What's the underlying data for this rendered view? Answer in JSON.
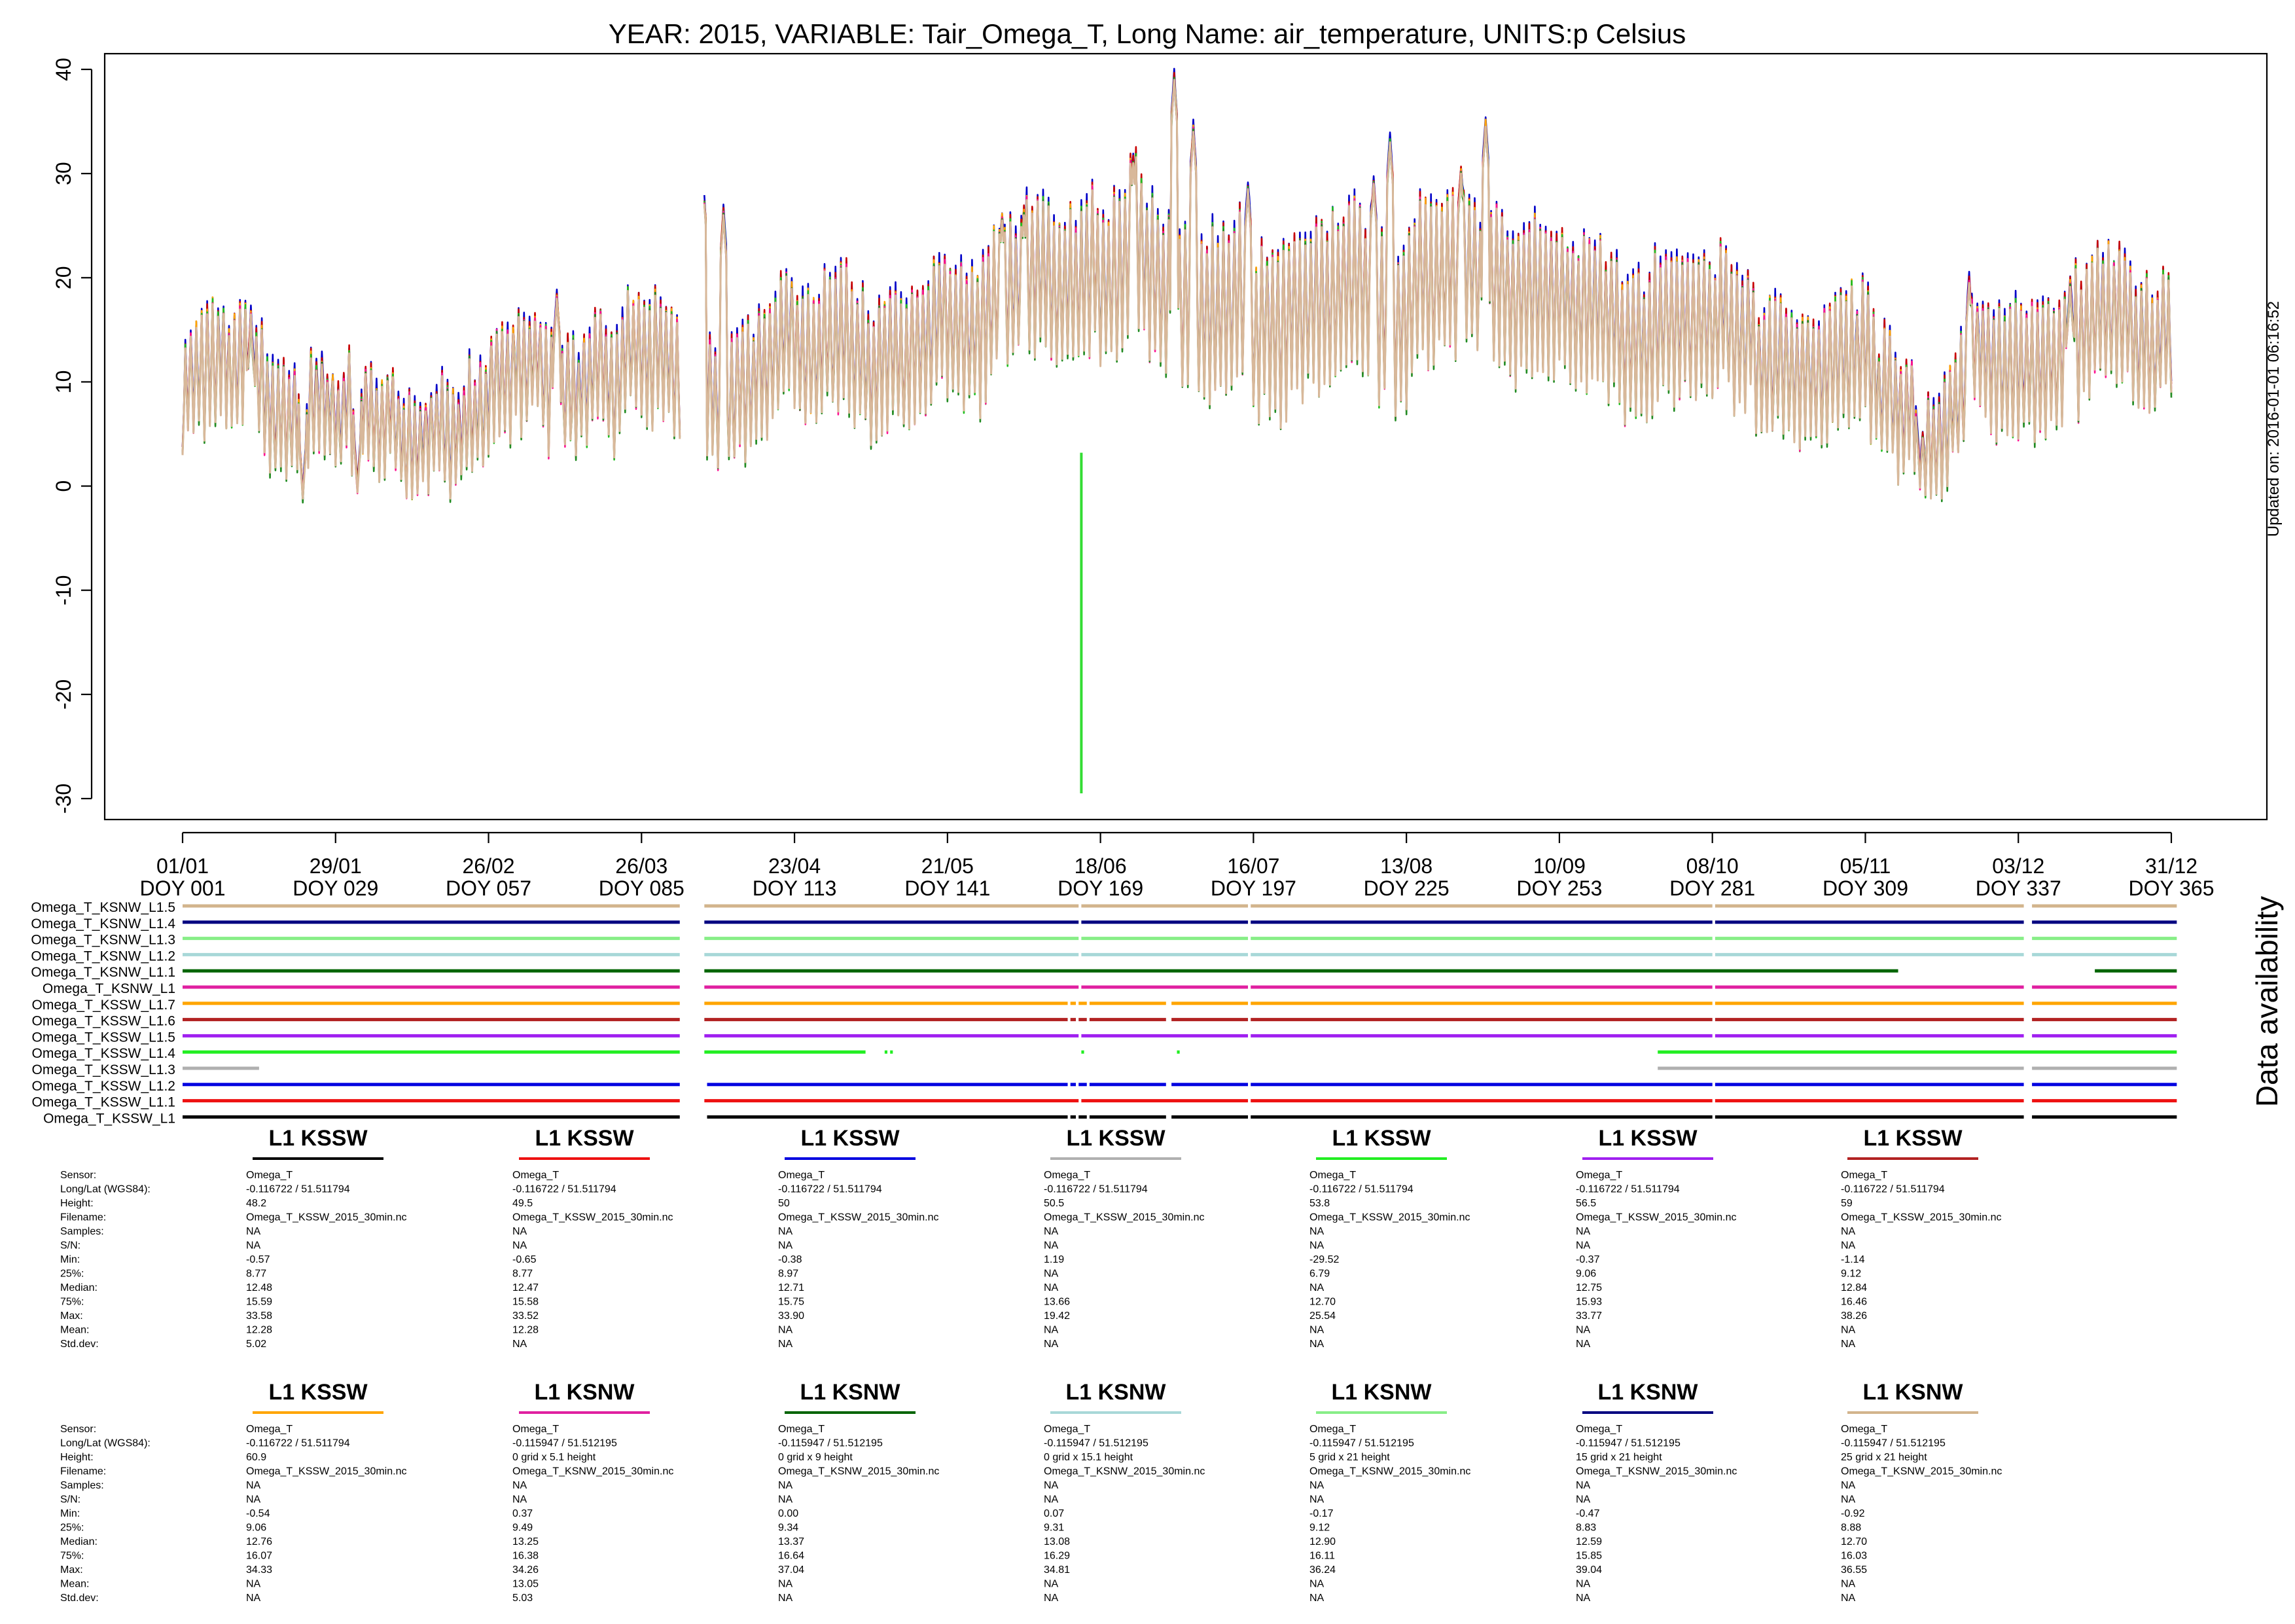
{
  "chart_data": {
    "type": "line",
    "title": "YEAR: 2015, VARIABLE: Tair_Omega_T, Long Name: air_temperature, UNITS:p Celsius",
    "updated": "Updated on: 2016-01-01 06:16:52",
    "ylim": [
      -32,
      42
    ],
    "yticks": [
      -30,
      -20,
      -10,
      0,
      10,
      20,
      30,
      40
    ],
    "ytick_labels": [
      "-30",
      "-20",
      "-10",
      "0",
      "10",
      "20",
      "30",
      "40"
    ],
    "xlim": [
      1,
      366
    ],
    "xticks": [
      {
        "doy": 1,
        "date": "01/01",
        "label": "DOY 001"
      },
      {
        "doy": 29,
        "date": "29/01",
        "label": "DOY 029"
      },
      {
        "doy": 57,
        "date": "26/02",
        "label": "DOY 057"
      },
      {
        "doy": 85,
        "date": "26/03",
        "label": "DOY 085"
      },
      {
        "doy": 113,
        "date": "23/04",
        "label": "DOY 113"
      },
      {
        "doy": 141,
        "date": "21/05",
        "label": "DOY 141"
      },
      {
        "doy": 169,
        "date": "18/06",
        "label": "DOY 169"
      },
      {
        "doy": 197,
        "date": "16/07",
        "label": "DOY 197"
      },
      {
        "doy": 225,
        "date": "13/08",
        "label": "DOY 225"
      },
      {
        "doy": 253,
        "date": "10/09",
        "label": "DOY 253"
      },
      {
        "doy": 281,
        "date": "08/10",
        "label": "DOY 281"
      },
      {
        "doy": 309,
        "date": "05/11",
        "label": "DOY 309"
      },
      {
        "doy": 337,
        "date": "03/12",
        "label": "DOY 337"
      },
      {
        "doy": 365,
        "date": "31/12",
        "label": "DOY 365"
      }
    ],
    "series_colors": [
      "#0000c8",
      "#c80000",
      "#ffa500",
      "#20c020",
      "#ff1493",
      "#228b22",
      "#d8b89a"
    ],
    "baseline_profile": [
      [
        1,
        7.5
      ],
      [
        8,
        9.5
      ],
      [
        15,
        9
      ],
      [
        22,
        7
      ],
      [
        29,
        5.5
      ],
      [
        36,
        4.5
      ],
      [
        43,
        5
      ],
      [
        50,
        5.5
      ],
      [
        57,
        6.5
      ],
      [
        64,
        7.5
      ],
      [
        71,
        8.5
      ],
      [
        78,
        9
      ],
      [
        85,
        9
      ],
      [
        92,
        9.5
      ],
      [
        99,
        12
      ],
      [
        106,
        12.5
      ],
      [
        113,
        12.5
      ],
      [
        120,
        13
      ],
      [
        127,
        13
      ],
      [
        134,
        13.5
      ],
      [
        141,
        14
      ],
      [
        148,
        14
      ],
      [
        155,
        14.5
      ],
      [
        162,
        15.5
      ],
      [
        169,
        17
      ],
      [
        176,
        19
      ],
      [
        183,
        18.5
      ],
      [
        190,
        19
      ],
      [
        197,
        19.5
      ],
      [
        204,
        20
      ],
      [
        211,
        19.5
      ],
      [
        218,
        19
      ],
      [
        225,
        19
      ],
      [
        232,
        18
      ],
      [
        239,
        18
      ],
      [
        246,
        17
      ],
      [
        253,
        16
      ],
      [
        260,
        15.5
      ],
      [
        267,
        15
      ],
      [
        274,
        14.5
      ],
      [
        281,
        14
      ],
      [
        288,
        13
      ],
      [
        295,
        12.5
      ],
      [
        302,
        12
      ],
      [
        309,
        11.5
      ],
      [
        316,
        10
      ],
      [
        323,
        7.5
      ],
      [
        330,
        10
      ],
      [
        337,
        12
      ],
      [
        344,
        12.5
      ],
      [
        351,
        13
      ],
      [
        358,
        12.5
      ],
      [
        365,
        10
      ]
    ],
    "peaks": [
      {
        "doy": 13.5,
        "value": 15.5
      },
      {
        "doy": 69.5,
        "value": 18
      },
      {
        "doy": 96.2,
        "value": 29.5
      },
      {
        "doy": 100,
        "value": 26
      },
      {
        "doy": 151,
        "value": 25.5
      },
      {
        "doy": 155,
        "value": 26
      },
      {
        "doy": 175,
        "value": 31
      },
      {
        "doy": 182.5,
        "value": 39
      },
      {
        "doy": 186,
        "value": 34
      },
      {
        "doy": 196,
        "value": 28.5
      },
      {
        "doy": 219,
        "value": 29
      },
      {
        "doy": 222,
        "value": 33
      },
      {
        "doy": 235,
        "value": 30
      },
      {
        "doy": 239.5,
        "value": 34.5
      },
      {
        "doy": 328,
        "value": 19.5
      },
      {
        "doy": 346.5,
        "value": 19
      }
    ],
    "troughs": [
      {
        "doy": 23,
        "value": -1.2
      },
      {
        "doy": 33,
        "value": -0.6
      },
      {
        "doy": 319,
        "value": 0.6
      }
    ],
    "outlier_spike": {
      "doy": 165.5,
      "from": 3.2,
      "to": -29.5,
      "color": "#33dd33"
    },
    "gaps": [
      [
        92,
        96.5
      ]
    ]
  },
  "availability": {
    "label": "Data availability",
    "rows": [
      {
        "name": "Omega_T_KSNW_L1.5",
        "color": "#d2b48c",
        "segments": [
          [
            1,
            92
          ],
          [
            96.5,
            165
          ],
          [
            165.5,
            196
          ],
          [
            196.5,
            281
          ],
          [
            281.5,
            338
          ],
          [
            339.5,
            366
          ]
        ]
      },
      {
        "name": "Omega_T_KSNW_L1.4",
        "color": "#000080",
        "segments": [
          [
            1,
            92
          ],
          [
            96.5,
            165
          ],
          [
            165.5,
            196
          ],
          [
            196.5,
            281
          ],
          [
            281.5,
            338
          ],
          [
            339.5,
            366
          ]
        ]
      },
      {
        "name": "Omega_T_KSNW_L1.3",
        "color": "#88ee88",
        "segments": [
          [
            1,
            92
          ],
          [
            96.5,
            165
          ],
          [
            165.5,
            196
          ],
          [
            196.5,
            281
          ],
          [
            281.5,
            338
          ],
          [
            339.5,
            366
          ]
        ]
      },
      {
        "name": "Omega_T_KSNW_L1.2",
        "color": "#a8d8d8",
        "segments": [
          [
            1,
            92
          ],
          [
            96.5,
            165
          ],
          [
            165.5,
            196
          ],
          [
            196.5,
            281
          ],
          [
            281.5,
            338
          ],
          [
            339.5,
            366
          ]
        ]
      },
      {
        "name": "Omega_T_KSNW_L1.1",
        "color": "#006400",
        "segments": [
          [
            1,
            92
          ],
          [
            96.5,
            315
          ],
          [
            351,
            366
          ]
        ]
      },
      {
        "name": "Omega_T_KSNW_L1",
        "color": "#e020a0",
        "segments": [
          [
            1,
            92
          ],
          [
            96.5,
            165
          ],
          [
            165.5,
            196
          ],
          [
            196.5,
            281
          ],
          [
            281.5,
            338
          ],
          [
            339.5,
            366
          ]
        ]
      },
      {
        "name": "Omega_T_KSSW_L1.7",
        "color": "#ffa500",
        "segments": [
          [
            1,
            92
          ],
          [
            96.5,
            163
          ],
          [
            163.5,
            164.5
          ],
          [
            165,
            166.5
          ],
          [
            167,
            181
          ],
          [
            182,
            196
          ],
          [
            196.5,
            281
          ],
          [
            281.5,
            338
          ],
          [
            339.5,
            366
          ]
        ]
      },
      {
        "name": "Omega_T_KSSW_L1.6",
        "color": "#b22222",
        "segments": [
          [
            1,
            92
          ],
          [
            96.5,
            163
          ],
          [
            163.5,
            164.5
          ],
          [
            165,
            166.5
          ],
          [
            167,
            181
          ],
          [
            182,
            196
          ],
          [
            196.5,
            281
          ],
          [
            281.5,
            338
          ],
          [
            339.5,
            366
          ]
        ]
      },
      {
        "name": "Omega_T_KSSW_L1.5",
        "color": "#a020f0",
        "segments": [
          [
            1,
            92
          ],
          [
            96.5,
            165
          ],
          [
            165.5,
            196
          ],
          [
            196.5,
            281
          ],
          [
            281.5,
            338
          ],
          [
            339.5,
            366
          ]
        ]
      },
      {
        "name": "Omega_T_KSSW_L1.4",
        "color": "#22ee22",
        "segments": [
          [
            1,
            92
          ],
          [
            96.5,
            126
          ],
          [
            129.5,
            130
          ],
          [
            130.5,
            131
          ],
          [
            165.5,
            166
          ],
          [
            183,
            183.5
          ],
          [
            271,
            366
          ]
        ]
      },
      {
        "name": "Omega_T_KSSW_L1.3",
        "color": "#b0b0b0",
        "segments": [
          [
            1,
            15
          ],
          [
            271,
            338
          ],
          [
            339.5,
            366
          ]
        ]
      },
      {
        "name": "Omega_T_KSSW_L1.2",
        "color": "#0000e0",
        "segments": [
          [
            1,
            92
          ],
          [
            97,
            163
          ],
          [
            163.5,
            164.5
          ],
          [
            165,
            166.5
          ],
          [
            167,
            181
          ],
          [
            182,
            196
          ],
          [
            196.5,
            281
          ],
          [
            281.5,
            338
          ],
          [
            339.5,
            366
          ]
        ]
      },
      {
        "name": "Omega_T_KSSW_L1.1",
        "color": "#ee1111",
        "segments": [
          [
            1,
            92
          ],
          [
            96.5,
            165
          ],
          [
            165.5,
            196
          ],
          [
            196.5,
            281
          ],
          [
            281.5,
            338
          ],
          [
            339.5,
            366
          ]
        ]
      },
      {
        "name": "Omega_T_KSSW_L1",
        "color": "#000000",
        "segments": [
          [
            1,
            92
          ],
          [
            97,
            163
          ],
          [
            163.5,
            164.5
          ],
          [
            165,
            166.5
          ],
          [
            167,
            181
          ],
          [
            182,
            196
          ],
          [
            196.5,
            281
          ],
          [
            281.5,
            338
          ],
          [
            339.5,
            366
          ]
        ]
      }
    ]
  },
  "stats": {
    "labels": [
      "Sensor:",
      "Long/Lat (WGS84):",
      "Height:",
      "Filename:",
      "Samples:",
      "S/N:",
      "Min:",
      "25%:",
      "Median:",
      "75%:",
      "Max:",
      "Mean:",
      "Std.dev:"
    ],
    "rows": [
      [
        {
          "title": "L1 KSSW",
          "color": "#000000",
          "values": [
            "Omega_T",
            "-0.116722 / 51.511794",
            "48.2",
            "Omega_T_KSSW_2015_30min.nc",
            "NA",
            "NA",
            "-0.57",
            "8.77",
            "12.48",
            "15.59",
            "33.58",
            "12.28",
            "5.02"
          ]
        },
        {
          "title": "L1 KSSW",
          "color": "#ee1111",
          "values": [
            "Omega_T",
            "-0.116722 / 51.511794",
            "49.5",
            "Omega_T_KSSW_2015_30min.nc",
            "NA",
            "NA",
            "-0.65",
            "8.77",
            "12.47",
            "15.58",
            "33.52",
            "12.28",
            "NA"
          ]
        },
        {
          "title": "L1 KSSW",
          "color": "#0000e0",
          "values": [
            "Omega_T",
            "-0.116722 / 51.511794",
            "50",
            "Omega_T_KSSW_2015_30min.nc",
            "NA",
            "NA",
            "-0.38",
            "8.97",
            "12.71",
            "15.75",
            "33.90",
            "NA",
            "NA"
          ]
        },
        {
          "title": "L1 KSSW",
          "color": "#b0b0b0",
          "values": [
            "Omega_T",
            "-0.116722 / 51.511794",
            "50.5",
            "Omega_T_KSSW_2015_30min.nc",
            "NA",
            "NA",
            "1.19",
            "NA",
            "NA",
            "13.66",
            "19.42",
            "NA",
            "NA"
          ]
        },
        {
          "title": "L1 KSSW",
          "color": "#22ee22",
          "values": [
            "Omega_T",
            "-0.116722 / 51.511794",
            "53.8",
            "Omega_T_KSSW_2015_30min.nc",
            "NA",
            "NA",
            "-29.52",
            "6.79",
            "NA",
            "12.70",
            "25.54",
            "NA",
            "NA"
          ]
        },
        {
          "title": "L1 KSSW",
          "color": "#a020f0",
          "values": [
            "Omega_T",
            "-0.116722 / 51.511794",
            "56.5",
            "Omega_T_KSSW_2015_30min.nc",
            "NA",
            "NA",
            "-0.37",
            "9.06",
            "12.75",
            "15.93",
            "33.77",
            "NA",
            "NA"
          ]
        },
        {
          "title": "L1 KSSW",
          "color": "#b22222",
          "values": [
            "Omega_T",
            "-0.116722 / 51.511794",
            "59",
            "Omega_T_KSSW_2015_30min.nc",
            "NA",
            "NA",
            "-1.14",
            "9.12",
            "12.84",
            "16.46",
            "38.26",
            "NA",
            "NA"
          ]
        }
      ],
      [
        {
          "title": "L1 KSSW",
          "color": "#ffa500",
          "values": [
            "Omega_T",
            "-0.116722 / 51.511794",
            "60.9",
            "Omega_T_KSSW_2015_30min.nc",
            "NA",
            "NA",
            "-0.54",
            "9.06",
            "12.76",
            "16.07",
            "34.33",
            "NA",
            "NA"
          ]
        },
        {
          "title": "L1 KSNW",
          "color": "#e020a0",
          "values": [
            "Omega_T",
            "-0.115947 / 51.512195",
            "0 grid x 5.1 height",
            "Omega_T_KSNW_2015_30min.nc",
            "NA",
            "NA",
            "0.37",
            "9.49",
            "13.25",
            "16.38",
            "34.26",
            "13.05",
            "5.03"
          ]
        },
        {
          "title": "L1 KSNW",
          "color": "#006400",
          "values": [
            "Omega_T",
            "-0.115947 / 51.512195",
            "0 grid x 9 height",
            "Omega_T_KSNW_2015_30min.nc",
            "NA",
            "NA",
            "0.00",
            "9.34",
            "13.37",
            "16.64",
            "37.04",
            "NA",
            "NA"
          ]
        },
        {
          "title": "L1 KSNW",
          "color": "#a8d8d8",
          "values": [
            "Omega_T",
            "-0.115947 / 51.512195",
            "0 grid x 15.1 height",
            "Omega_T_KSNW_2015_30min.nc",
            "NA",
            "NA",
            "0.07",
            "9.31",
            "13.08",
            "16.29",
            "34.81",
            "NA",
            "NA"
          ]
        },
        {
          "title": "L1 KSNW",
          "color": "#88ee88",
          "values": [
            "Omega_T",
            "-0.115947 / 51.512195",
            "5 grid x 21 height",
            "Omega_T_KSNW_2015_30min.nc",
            "NA",
            "NA",
            "-0.17",
            "9.12",
            "12.90",
            "16.11",
            "36.24",
            "NA",
            "NA"
          ]
        },
        {
          "title": "L1 KSNW",
          "color": "#000080",
          "values": [
            "Omega_T",
            "-0.115947 / 51.512195",
            "15 grid x 21 height",
            "Omega_T_KSNW_2015_30min.nc",
            "NA",
            "NA",
            "-0.47",
            "8.83",
            "12.59",
            "15.85",
            "39.04",
            "NA",
            "NA"
          ]
        },
        {
          "title": "L1 KSNW",
          "color": "#d2b48c",
          "values": [
            "Omega_T",
            "-0.115947 / 51.512195",
            "25 grid x 21 height",
            "Omega_T_KSNW_2015_30min.nc",
            "NA",
            "NA",
            "-0.92",
            "8.88",
            "12.70",
            "16.03",
            "36.55",
            "NA",
            "NA"
          ]
        }
      ]
    ]
  }
}
